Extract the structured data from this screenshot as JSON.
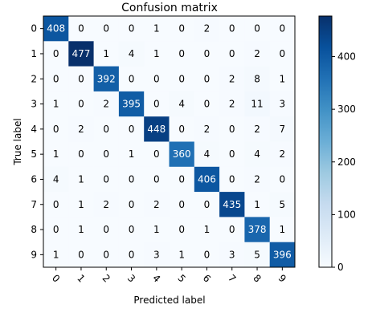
{
  "chart_data": {
    "type": "heatmap",
    "title": "Confusion matrix",
    "xlabel": "Predicted label",
    "ylabel": "True label",
    "x_categories": [
      "0",
      "1",
      "2",
      "3",
      "4",
      "5",
      "6",
      "7",
      "8",
      "9"
    ],
    "y_categories": [
      "0",
      "1",
      "2",
      "3",
      "4",
      "5",
      "6",
      "7",
      "8",
      "9"
    ],
    "matrix": [
      [
        408,
        0,
        0,
        0,
        1,
        0,
        2,
        0,
        0,
        0
      ],
      [
        0,
        477,
        1,
        4,
        1,
        0,
        0,
        0,
        2,
        0
      ],
      [
        0,
        0,
        392,
        0,
        0,
        0,
        0,
        2,
        8,
        1
      ],
      [
        1,
        0,
        2,
        395,
        0,
        4,
        0,
        2,
        11,
        3
      ],
      [
        0,
        2,
        0,
        0,
        448,
        0,
        2,
        0,
        2,
        7
      ],
      [
        1,
        0,
        0,
        1,
        0,
        360,
        4,
        0,
        4,
        2
      ],
      [
        4,
        1,
        0,
        0,
        0,
        0,
        406,
        0,
        2,
        0
      ],
      [
        0,
        1,
        2,
        0,
        2,
        0,
        0,
        435,
        1,
        5
      ],
      [
        0,
        1,
        0,
        0,
        1,
        0,
        1,
        0,
        378,
        1
      ],
      [
        1,
        0,
        0,
        0,
        3,
        1,
        0,
        3,
        5,
        396
      ]
    ],
    "colormap": "Blues",
    "colorbar": {
      "range": [
        0,
        477
      ],
      "ticks": [
        "0",
        "100",
        "200",
        "300",
        "400"
      ]
    },
    "grid": false
  }
}
